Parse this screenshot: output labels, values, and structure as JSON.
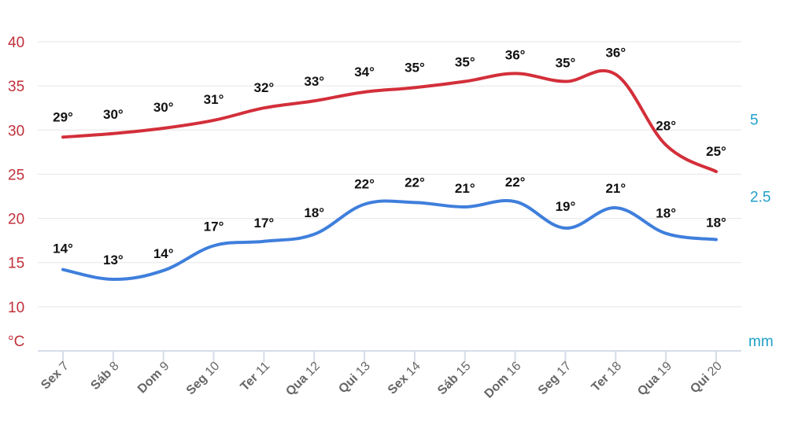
{
  "chart_data": {
    "type": "line",
    "categories": [
      {
        "day": "Sex",
        "num": "7"
      },
      {
        "day": "Sáb",
        "num": "8"
      },
      {
        "day": "Dom",
        "num": "9"
      },
      {
        "day": "Seg",
        "num": "10"
      },
      {
        "day": "Ter",
        "num": "11"
      },
      {
        "day": "Qua",
        "num": "12"
      },
      {
        "day": "Qui",
        "num": "13"
      },
      {
        "day": "Sex",
        "num": "14"
      },
      {
        "day": "Sáb",
        "num": "15"
      },
      {
        "day": "Dom",
        "num": "16"
      },
      {
        "day": "Seg",
        "num": "17"
      },
      {
        "day": "Ter",
        "num": "18"
      },
      {
        "day": "Qua",
        "num": "19"
      },
      {
        "day": "Qui",
        "num": "20"
      }
    ],
    "series": [
      {
        "color": "#d32f3a",
        "values": [
          29.2,
          29.6,
          30.2,
          31.1,
          32.5,
          33.3,
          34.3,
          34.8,
          35.5,
          36.4,
          35.5,
          36.3,
          28.3,
          25.3
        ],
        "labels": [
          "29°",
          "30°",
          "30°",
          "31°",
          "32°",
          "33°",
          "34°",
          "35°",
          "35°",
          "36°",
          "35°",
          "36°",
          "28°",
          "25°"
        ]
      },
      {
        "color": "#3f7fdc",
        "values": [
          14.2,
          13.1,
          14.1,
          16.9,
          17.4,
          18.2,
          21.6,
          21.8,
          21.3,
          21.9,
          18.9,
          21.2,
          18.3,
          17.6
        ],
        "labels": [
          "14°",
          "13°",
          "14°",
          "17°",
          "17°",
          "18°",
          "22°",
          "22°",
          "21°",
          "22°",
          "19°",
          "21°",
          "18°",
          "18°"
        ]
      }
    ],
    "y_left": {
      "min": 5,
      "max": 40,
      "ticks": [
        40,
        35,
        30,
        25,
        20,
        15,
        10
      ],
      "unit_label": "°C",
      "color": "#c0303a"
    },
    "y_right": {
      "min": -2.5,
      "max": 7.5,
      "ticks": [
        5,
        2.5
      ],
      "tick_labels": [
        "5",
        "2.5"
      ],
      "unit_label": "mm",
      "color": "#1fa0c8"
    },
    "grid": true,
    "legend": "none"
  }
}
